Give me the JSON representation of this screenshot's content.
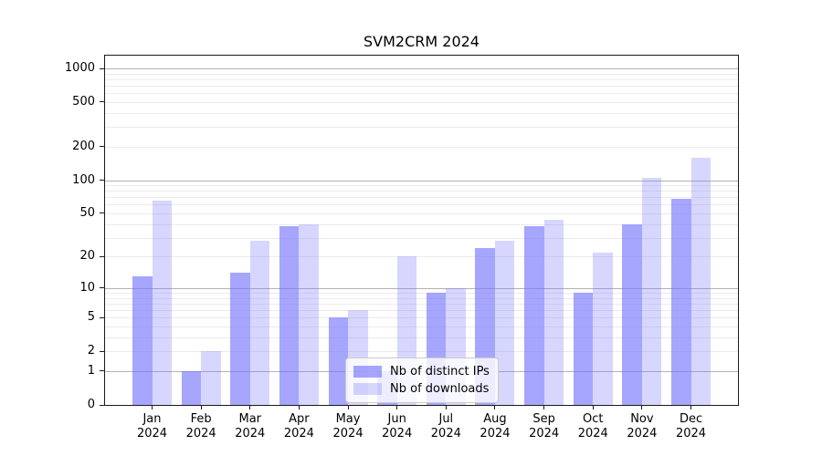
{
  "title": "SVM2CRM 2024",
  "legend": {
    "items": [
      {
        "label": "Nb of distinct IPs",
        "color": "rgba(119,119,255,0.65)"
      },
      {
        "label": "Nb of downloads",
        "color": "rgba(119,119,255,0.30)"
      }
    ]
  },
  "chart_data": {
    "type": "bar",
    "title": "SVM2CRM 2024",
    "categories": [
      "Jan",
      "Feb",
      "Mar",
      "Apr",
      "May",
      "Jun",
      "Jul",
      "Aug",
      "Sep",
      "Oct",
      "Nov",
      "Dec"
    ],
    "category_year": "2024",
    "series": [
      {
        "name": "Nb of distinct IPs",
        "color": "rgba(119,119,255,0.65)",
        "values": [
          13,
          1,
          14,
          38,
          5,
          1,
          9,
          24,
          38,
          9,
          40,
          68
        ]
      },
      {
        "name": "Nb of downloads",
        "color": "rgba(119,119,255,0.30)",
        "values": [
          65,
          2,
          28,
          40,
          6,
          20,
          10,
          28,
          44,
          22,
          105,
          160
        ]
      }
    ],
    "yscale": "log1p",
    "y_ticks": [
      0,
      1,
      2,
      5,
      10,
      20,
      50,
      100,
      200,
      500,
      1000
    ],
    "y_major_grid": [
      1,
      10,
      100,
      1000
    ],
    "y_top": 1300,
    "xlabel": "",
    "ylabel": "",
    "grid": true,
    "legend_position": "lower center inside"
  },
  "colors": {
    "spine": "#1a1a1a",
    "grid_major": "#b2b2b2",
    "grid_minor": "#ebebeb",
    "background": "#ffffff"
  }
}
